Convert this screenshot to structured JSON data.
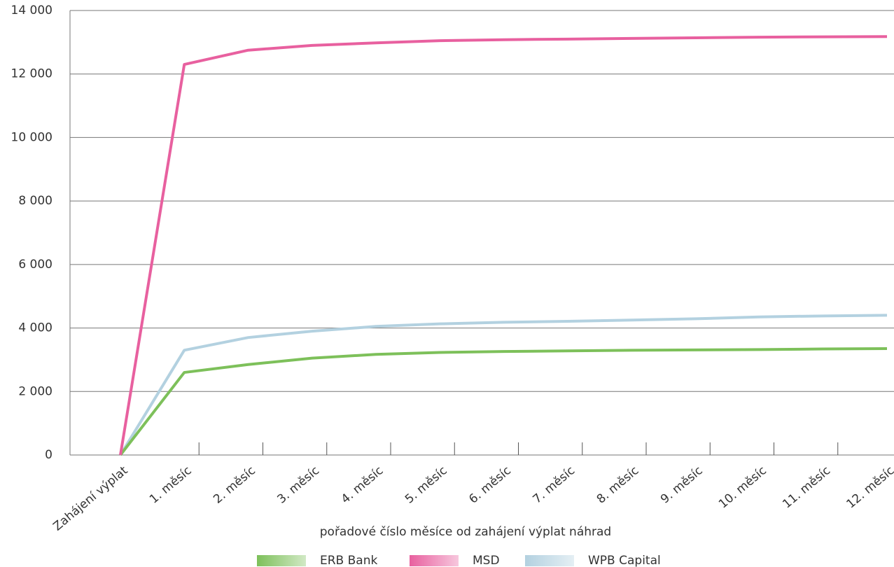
{
  "chart_data": {
    "type": "line",
    "x_label": "pořadové číslo měsíce od zahájení výplat náhrad",
    "categories": [
      "Zahájení výplat",
      "1. měsíc",
      "2. měsíc",
      "3. měsíc",
      "4. měsíc",
      "5. měsíc",
      "6. měsíc",
      "7. měsíc",
      "8. měsíc",
      "9. měsíc",
      "10. měsíc",
      "11. měsíc",
      "12. měsíc"
    ],
    "series": [
      {
        "name": "ERB Bank",
        "color": "#7dc05a",
        "values": [
          0,
          2600,
          2850,
          3050,
          3170,
          3230,
          3260,
          3280,
          3300,
          3310,
          3320,
          3340,
          3350
        ]
      },
      {
        "name": "MSD",
        "color": "#e8609f",
        "values": [
          0,
          12300,
          12750,
          12900,
          12980,
          13050,
          13080,
          13100,
          13120,
          13140,
          13160,
          13170,
          13180
        ]
      },
      {
        "name": "WPB Capital",
        "color": "#b3d1e0",
        "values": [
          0,
          3300,
          3700,
          3900,
          4050,
          4130,
          4180,
          4210,
          4250,
          4290,
          4350,
          4380,
          4400
        ]
      }
    ],
    "ylim": [
      0,
      14000
    ],
    "yticks": [
      0,
      {
        "value": 2000,
        "label": "2 000"
      },
      {
        "value": 4000,
        "label": "4 000"
      },
      {
        "value": 6000,
        "label": "6 000"
      },
      {
        "value": 8000,
        "label": "8 000"
      },
      {
        "value": 10000,
        "label": "10 000"
      },
      {
        "value": 12000,
        "label": "12 000"
      },
      {
        "value": 14000,
        "label": "14 000"
      }
    ],
    "grid": true
  }
}
